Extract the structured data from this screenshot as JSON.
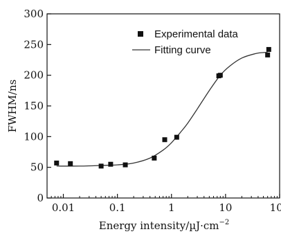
{
  "chart_data": {
    "type": "scatter",
    "x_scale": "log",
    "xlim": [
      0.005,
      100
    ],
    "ylim": [
      0,
      300
    ],
    "xticks": [
      0.01,
      0.1,
      1,
      10,
      100
    ],
    "xtick_labels": [
      "0.01",
      "0.1",
      "1",
      "10",
      "100"
    ],
    "yticks": [
      0,
      50,
      100,
      150,
      200,
      250,
      300
    ],
    "ytick_labels": [
      "0",
      "50",
      "100",
      "150",
      "200",
      "250",
      "300"
    ],
    "xlabel": "Energy intensity/µJ·cm",
    "xlabel_superscript": "−2",
    "ylabel": "FWHM/ns",
    "grid": false,
    "legend_position": "top-right",
    "legend_entries": [
      {
        "label": "Experimental data",
        "marker": "square"
      },
      {
        "label": "Fitting curve",
        "marker": "line"
      }
    ],
    "series": [
      {
        "name": "Experimental data",
        "kind": "points",
        "points": [
          [
            0.0075,
            57
          ],
          [
            0.0135,
            56
          ],
          [
            0.05,
            52
          ],
          [
            0.075,
            55
          ],
          [
            0.14,
            54
          ],
          [
            0.48,
            65
          ],
          [
            0.75,
            95
          ],
          [
            1.25,
            99
          ],
          [
            7.5,
            199
          ],
          [
            8.0,
            200
          ],
          [
            60,
            233
          ],
          [
            63,
            242
          ]
        ]
      },
      {
        "name": "Fitting curve",
        "kind": "line",
        "points": [
          [
            0.0075,
            52
          ],
          [
            0.02,
            52
          ],
          [
            0.05,
            53
          ],
          [
            0.1,
            54
          ],
          [
            0.2,
            57
          ],
          [
            0.4,
            65
          ],
          [
            0.7,
            78
          ],
          [
            1.0,
            90
          ],
          [
            1.5,
            108
          ],
          [
            2.0,
            122
          ],
          [
            3.0,
            145
          ],
          [
            5.0,
            175
          ],
          [
            8.0,
            200
          ],
          [
            12,
            215
          ],
          [
            20,
            228
          ],
          [
            35,
            235
          ],
          [
            50,
            237
          ],
          [
            60,
            237
          ]
        ]
      }
    ],
    "colors": {
      "axis": "#111111",
      "marker": "#111111",
      "line": "#333333"
    }
  }
}
